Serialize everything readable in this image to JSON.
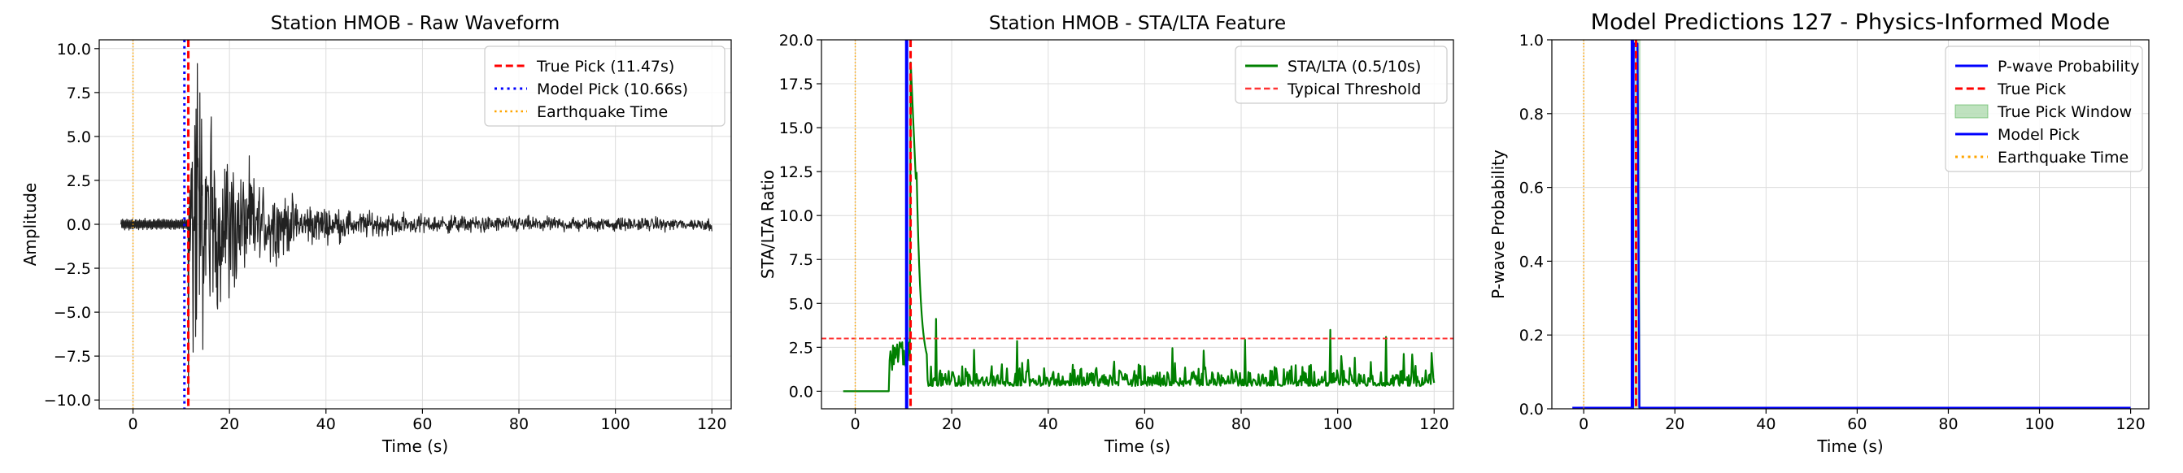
{
  "chart_data": [
    {
      "type": "line",
      "title": "Station HMOB - Raw Waveform",
      "xlabel": "Time (s)",
      "ylabel": "Amplitude",
      "xlim": [
        -7,
        124
      ],
      "ylim": [
        -10.5,
        10.5
      ],
      "xticks": [
        0,
        20,
        40,
        60,
        80,
        100,
        120
      ],
      "xtick_labels": [
        "0",
        "20",
        "40",
        "60",
        "80",
        "100",
        "120"
      ],
      "yticks": [
        -10,
        -7.5,
        -5,
        -2.5,
        0,
        2.5,
        5,
        7.5,
        10
      ],
      "ytick_labels": [
        "−10.0",
        "−7.5",
        "−5.0",
        "−2.5",
        "0.0",
        "2.5",
        "5.0",
        "7.5",
        "10.0"
      ],
      "grid": true,
      "legend_position": "top-right",
      "series": [
        {
          "name": "",
          "kind": "waveform",
          "color": "#222222",
          "x_start": -2.5,
          "x_end": 120,
          "onset": 11.47,
          "peak_amplitude": 9.5,
          "noise_amplitude": 0.35
        }
      ],
      "vlines": [
        {
          "name": "True Pick (11.47s)",
          "x": 11.47,
          "color": "#ff0000",
          "style": "dashed",
          "width": 3
        },
        {
          "name": "Model Pick (10.66s)",
          "x": 10.66,
          "color": "#0000ff",
          "style": "dotted",
          "width": 3
        },
        {
          "name": "Earthquake Time",
          "x": 0,
          "color": "#ffa500",
          "style": "dotted",
          "width": 1.5
        }
      ],
      "hlines": [],
      "spans": []
    },
    {
      "type": "line",
      "title": "Station HMOB - STA/LTA Feature",
      "xlabel": "Time (s)",
      "ylabel": "STA/LTA Ratio",
      "xlim": [
        -7,
        124
      ],
      "ylim": [
        -1,
        20
      ],
      "xticks": [
        0,
        20,
        40,
        60,
        80,
        100,
        120
      ],
      "xtick_labels": [
        "0",
        "20",
        "40",
        "60",
        "80",
        "100",
        "120"
      ],
      "yticks": [
        0,
        2.5,
        5,
        7.5,
        10,
        12.5,
        15,
        17.5,
        20
      ],
      "ytick_labels": [
        "0.0",
        "2.5",
        "5.0",
        "7.5",
        "10.0",
        "12.5",
        "15.0",
        "17.5",
        "20.0"
      ],
      "grid": true,
      "legend_position": "top-right",
      "series": [
        {
          "name": "STA/LTA (0.5/10s)",
          "kind": "stalta",
          "color": "#008000",
          "x_start": -2.5,
          "x_end": 120,
          "onset": 11.47,
          "peak_amplitude": 18.9,
          "noise_amplitude": 1.0
        }
      ],
      "vlines": [
        {
          "name": "",
          "x": 10.66,
          "color": "#0000ff",
          "style": "solid",
          "width": 4
        },
        {
          "name": "",
          "x": 11.47,
          "color": "#ff0000",
          "style": "dashed",
          "width": 3
        },
        {
          "name": "",
          "x": 0,
          "color": "#ffa500",
          "style": "dotted",
          "width": 1.5
        }
      ],
      "hlines": [
        {
          "name": "Typical Threshold",
          "y": 3.0,
          "color": "#ff3333",
          "style": "dashed",
          "width": 2
        }
      ],
      "spans": []
    },
    {
      "type": "line",
      "title": "Model Predictions 127 - Physics-Informed Mode",
      "xlabel": "Time (s)",
      "ylabel": "P-wave Probability",
      "xlim": [
        -7,
        124
      ],
      "ylim": [
        0,
        1
      ],
      "xticks": [
        0,
        20,
        40,
        60,
        80,
        100,
        120
      ],
      "xtick_labels": [
        "0",
        "20",
        "40",
        "60",
        "80",
        "100",
        "120"
      ],
      "yticks": [
        0,
        0.2,
        0.4,
        0.6,
        0.8,
        1.0
      ],
      "ytick_labels": [
        "0.0",
        "0.2",
        "0.4",
        "0.6",
        "0.8",
        "1.0"
      ],
      "grid": true,
      "legend_position": "top-right",
      "series": [
        {
          "name": "P-wave Probability",
          "kind": "probability",
          "color": "#0000ff",
          "x_start": -2.5,
          "x_end": 120,
          "onset": 10.66,
          "peak_amplitude": 1.0,
          "noise_amplitude": 0
        }
      ],
      "legend_extra": [
        {
          "name": "True Pick",
          "color": "#ff0000",
          "style": "dashed"
        },
        {
          "name": "True Pick Window",
          "color": "#2ca02c",
          "style": "patch"
        },
        {
          "name": "Model Pick",
          "color": "#0000ff",
          "style": "solid"
        },
        {
          "name": "Earthquake Time",
          "color": "#ffa500",
          "style": "dotted"
        }
      ],
      "vlines": [
        {
          "name": "",
          "x": 10.66,
          "color": "#0000ff",
          "style": "solid",
          "width": 4
        },
        {
          "name": "",
          "x": 11.47,
          "color": "#ff0000",
          "style": "dashed",
          "width": 3
        },
        {
          "name": "",
          "x": 0,
          "color": "#ffa500",
          "style": "dotted",
          "width": 1.5
        }
      ],
      "hlines": [],
      "spans": [
        {
          "name": "True Pick Window",
          "x0": 10.47,
          "x1": 12.47,
          "color": "#2ca02c",
          "opacity": 0.3
        }
      ]
    }
  ]
}
